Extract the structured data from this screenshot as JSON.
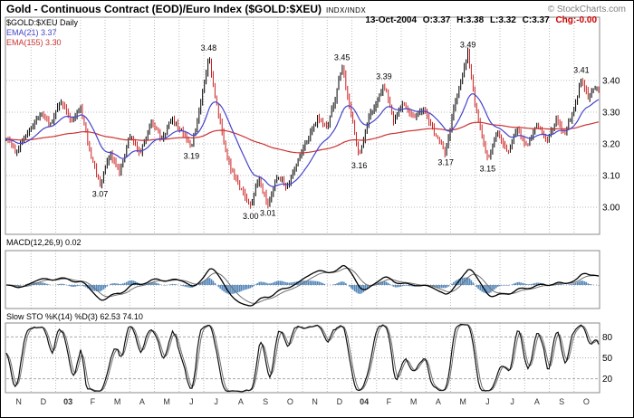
{
  "header": {
    "title": "Gold - Continuous Contract (EOD)/Euro Index ($GOLD:$XEU)",
    "exchange": "INDX/INDX",
    "copyright": "© StockCharts.com",
    "date": "13-Oct-2004",
    "open": "O:3.37",
    "high": "H:3.38",
    "low": "L:3.32",
    "close": "C:3.37",
    "chg": "Chg:-0.00"
  },
  "legend": {
    "symbol": "$GOLD:$XEU Daily",
    "ema21": "EMA(21) 3.37",
    "ema155": "EMA(155) 3.30"
  },
  "colors": {
    "bar_up": "#000000",
    "bar_down": "#cc2222",
    "ema21": "#4444cc",
    "ema155": "#cc3333",
    "macd_line": "#000000",
    "macd_signal": "#707070",
    "macd_hist": "#5588bb",
    "sto_k": "#111111",
    "sto_d": "#707070",
    "grid": "#bbbbbb",
    "panel_border": "#888888",
    "axis_text": "#000000",
    "month_text": "#333333",
    "chg_neg": "#cc0000"
  },
  "chart_data": [
    {
      "panel": "price",
      "type": "ohlc-bars",
      "symbol": "$GOLD:$XEU",
      "timeframe": "Daily",
      "x_axis": {
        "labels": [
          "N",
          "D",
          "03",
          "F",
          "M",
          "A",
          "M",
          "J",
          "J",
          "A",
          "S",
          "O",
          "N",
          "D",
          "04",
          "F",
          "M",
          "A",
          "M",
          "J",
          "J",
          "A",
          "S",
          "O"
        ],
        "range": "Nov-2002 to Oct-2004"
      },
      "ylim": [
        2.91,
        3.6
      ],
      "yticks": [
        3.0,
        3.1,
        3.2,
        3.3,
        3.4
      ],
      "series": [
        {
          "name": "$GOLD:$XEU close",
          "type": "ohlc",
          "points_per_month": 14,
          "waypoints": [
            [
              0,
              3.22
            ],
            [
              0.4,
              3.17
            ],
            [
              0.9,
              3.24
            ],
            [
              1.4,
              3.3
            ],
            [
              1.8,
              3.26
            ],
            [
              2.2,
              3.34
            ],
            [
              2.6,
              3.27
            ],
            [
              3.0,
              3.32
            ],
            [
              3.4,
              3.17
            ],
            [
              3.8,
              3.07
            ],
            [
              4.2,
              3.17
            ],
            [
              4.6,
              3.11
            ],
            [
              5.0,
              3.23
            ],
            [
              5.4,
              3.17
            ],
            [
              5.9,
              3.27
            ],
            [
              6.3,
              3.21
            ],
            [
              6.7,
              3.28
            ],
            [
              7.1,
              3.24
            ],
            [
              7.5,
              3.19
            ],
            [
              7.9,
              3.34
            ],
            [
              8.2,
              3.48
            ],
            [
              8.5,
              3.33
            ],
            [
              9.0,
              3.14
            ],
            [
              9.4,
              3.07
            ],
            [
              9.9,
              3.0
            ],
            [
              10.2,
              3.09
            ],
            [
              10.6,
              3.01
            ],
            [
              11.0,
              3.1
            ],
            [
              11.4,
              3.06
            ],
            [
              11.8,
              3.15
            ],
            [
              12.2,
              3.21
            ],
            [
              12.6,
              3.28
            ],
            [
              13.0,
              3.26
            ],
            [
              13.3,
              3.33
            ],
            [
              13.6,
              3.45
            ],
            [
              13.9,
              3.32
            ],
            [
              14.3,
              3.16
            ],
            [
              14.7,
              3.29
            ],
            [
              15.0,
              3.33
            ],
            [
              15.3,
              3.39
            ],
            [
              15.7,
              3.27
            ],
            [
              16.1,
              3.33
            ],
            [
              16.5,
              3.28
            ],
            [
              16.9,
              3.31
            ],
            [
              17.3,
              3.24
            ],
            [
              17.8,
              3.17
            ],
            [
              18.2,
              3.34
            ],
            [
              18.7,
              3.49
            ],
            [
              19.0,
              3.32
            ],
            [
              19.5,
              3.15
            ],
            [
              19.9,
              3.23
            ],
            [
              20.3,
              3.17
            ],
            [
              20.7,
              3.25
            ],
            [
              21.1,
              3.19
            ],
            [
              21.5,
              3.26
            ],
            [
              21.9,
              3.21
            ],
            [
              22.3,
              3.28
            ],
            [
              22.6,
              3.23
            ],
            [
              23.0,
              3.31
            ],
            [
              23.3,
              3.41
            ],
            [
              23.6,
              3.34
            ],
            [
              23.8,
              3.38
            ],
            [
              24,
              3.37
            ]
          ]
        },
        {
          "name": "EMA(21)",
          "type": "line",
          "period": 21,
          "last_value": 3.37
        },
        {
          "name": "EMA(155)",
          "type": "line",
          "period": 155,
          "last_value": 3.3
        }
      ],
      "annotations": [
        {
          "t": 3.8,
          "price": 3.07,
          "label": "3.07",
          "pos": "below"
        },
        {
          "t": 7.5,
          "price": 3.19,
          "label": "3.19",
          "pos": "below"
        },
        {
          "t": 8.2,
          "price": 3.48,
          "label": "3.48",
          "pos": "above"
        },
        {
          "t": 9.9,
          "price": 3.0,
          "label": "3.00",
          "pos": "below"
        },
        {
          "t": 10.6,
          "price": 3.01,
          "label": "3.01",
          "pos": "below"
        },
        {
          "t": 13.6,
          "price": 3.45,
          "label": "3.45",
          "pos": "above"
        },
        {
          "t": 14.3,
          "price": 3.16,
          "label": "3.16",
          "pos": "below"
        },
        {
          "t": 15.3,
          "price": 3.39,
          "label": "3.39",
          "pos": "above"
        },
        {
          "t": 17.8,
          "price": 3.17,
          "label": "3.17",
          "pos": "below"
        },
        {
          "t": 18.7,
          "price": 3.49,
          "label": "3.49",
          "pos": "above"
        },
        {
          "t": 19.5,
          "price": 3.15,
          "label": "3.15",
          "pos": "below"
        },
        {
          "t": 23.3,
          "price": 3.41,
          "label": "3.41",
          "pos": "above"
        }
      ]
    },
    {
      "panel": "macd",
      "label": "MACD(12,26,9) 0.02",
      "type": "line+histogram",
      "params": {
        "fast": 12,
        "slow": 26,
        "signal": 9
      },
      "last_value": 0.02,
      "derived_from": "price series"
    },
    {
      "panel": "slow-stochastic",
      "label": "Slow STO %K(14) %D(3) 62.53 74.10",
      "type": "line",
      "params": {
        "k": 14,
        "d": 3
      },
      "last_k": 62.53,
      "last_d": 74.1,
      "yticks": [
        20,
        50,
        80
      ],
      "ylim": [
        0,
        100
      ]
    }
  ]
}
